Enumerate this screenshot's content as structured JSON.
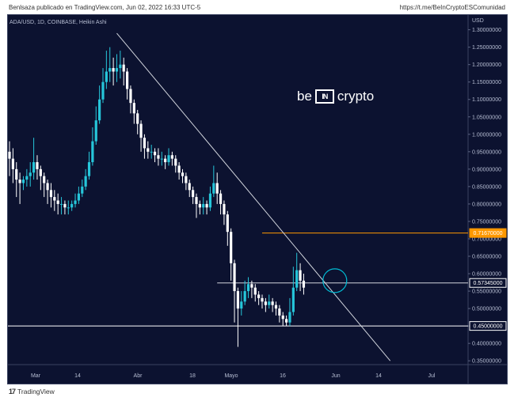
{
  "header": {
    "publisher": "Benlsaza publicado en TradingView.com, Jun 02, 2022 16:33 UTC-5",
    "link": "https://t.me/BeInCryptoESComunidad"
  },
  "symbol_line": "ADA/USD, 1D, COINBASE, Heikin Ashi",
  "brand": {
    "left": "be",
    "mark": "IN",
    "right": "crypto"
  },
  "footer": {
    "logo": "17",
    "name": "TradingView"
  },
  "chart_data": {
    "type": "candlestick",
    "price_axis": {
      "currency_label": "USD",
      "range": [
        0.33,
        1.33
      ],
      "ticks": [
        "1.30000000",
        "1.25000000",
        "1.20000000",
        "1.15000000",
        "1.10000000",
        "1.05000000",
        "1.00000000",
        "0.95000000",
        "0.90000000",
        "0.85000000",
        "0.80000000",
        "0.75000000",
        "0.70000000",
        "0.65000000",
        "0.60000000",
        "0.55000000",
        "0.50000000",
        "0.45000000",
        "0.40000000",
        "0.35000000"
      ]
    },
    "time_axis": {
      "labels": [
        "Mar",
        "14",
        "Abr",
        "18",
        "Mayo",
        "16",
        "Jun",
        "14",
        "Jul"
      ]
    },
    "price_labels": [
      {
        "value": 0.7167,
        "text": "0.71670000",
        "color": "#ff9800",
        "style": "filled"
      },
      {
        "value": 0.57345,
        "text": "0.57345000",
        "color": "#ffffff",
        "style": "outline"
      },
      {
        "value": 0.45,
        "text": "0.45000000",
        "color": "#ffffff",
        "style": "outline"
      }
    ],
    "horizontal_lines": [
      {
        "value": 0.7167,
        "color": "#ff9800",
        "from_day": 73,
        "to": "axis"
      },
      {
        "value": 0.57345,
        "color": "#d1d4dc",
        "from_day": 60,
        "to": "axis"
      },
      {
        "value": 0.45,
        "color": "#ffffff",
        "from_day": -5,
        "to": "axis"
      }
    ],
    "trendline": {
      "from": [
        31,
        1.29
      ],
      "to": [
        110,
        0.35
      ],
      "color": "#d1d4dc"
    },
    "circle": {
      "day": 94,
      "value": 0.58,
      "color": "#00bcd4"
    },
    "colors": {
      "up": "#26c6da",
      "down": "#ffffff"
    },
    "candles": [
      {
        "o": 0.95,
        "c": 0.93,
        "h": 0.98,
        "l": 0.88
      },
      {
        "o": 0.93,
        "c": 0.9,
        "h": 0.96,
        "l": 0.86
      },
      {
        "o": 0.9,
        "c": 0.87,
        "h": 0.92,
        "l": 0.82
      },
      {
        "o": 0.87,
        "c": 0.86,
        "h": 0.89,
        "l": 0.8
      },
      {
        "o": 0.86,
        "c": 0.87,
        "h": 0.88,
        "l": 0.84
      },
      {
        "o": 0.87,
        "c": 0.88,
        "h": 0.9,
        "l": 0.85
      },
      {
        "o": 0.88,
        "c": 0.89,
        "h": 0.92,
        "l": 0.85
      },
      {
        "o": 0.89,
        "c": 0.92,
        "h": 0.99,
        "l": 0.87
      },
      {
        "o": 0.92,
        "c": 0.9,
        "h": 0.94,
        "l": 0.87
      },
      {
        "o": 0.9,
        "c": 0.88,
        "h": 0.91,
        "l": 0.84
      },
      {
        "o": 0.88,
        "c": 0.86,
        "h": 0.89,
        "l": 0.82
      },
      {
        "o": 0.86,
        "c": 0.84,
        "h": 0.87,
        "l": 0.8
      },
      {
        "o": 0.84,
        "c": 0.82,
        "h": 0.86,
        "l": 0.79
      },
      {
        "o": 0.82,
        "c": 0.81,
        "h": 0.84,
        "l": 0.78
      },
      {
        "o": 0.81,
        "c": 0.8,
        "h": 0.83,
        "l": 0.77
      },
      {
        "o": 0.8,
        "c": 0.8,
        "h": 0.82,
        "l": 0.77
      },
      {
        "o": 0.8,
        "c": 0.79,
        "h": 0.81,
        "l": 0.77
      },
      {
        "o": 0.79,
        "c": 0.79,
        "h": 0.81,
        "l": 0.77
      },
      {
        "o": 0.79,
        "c": 0.8,
        "h": 0.81,
        "l": 0.78
      },
      {
        "o": 0.8,
        "c": 0.81,
        "h": 0.83,
        "l": 0.79
      },
      {
        "o": 0.81,
        "c": 0.83,
        "h": 0.85,
        "l": 0.8
      },
      {
        "o": 0.83,
        "c": 0.85,
        "h": 0.87,
        "l": 0.82
      },
      {
        "o": 0.85,
        "c": 0.88,
        "h": 0.9,
        "l": 0.84
      },
      {
        "o": 0.88,
        "c": 0.92,
        "h": 0.95,
        "l": 0.87
      },
      {
        "o": 0.92,
        "c": 0.98,
        "h": 1.02,
        "l": 0.91
      },
      {
        "o": 0.98,
        "c": 1.04,
        "h": 1.08,
        "l": 0.97
      },
      {
        "o": 1.04,
        "c": 1.1,
        "h": 1.14,
        "l": 1.03
      },
      {
        "o": 1.1,
        "c": 1.15,
        "h": 1.19,
        "l": 1.09
      },
      {
        "o": 1.15,
        "c": 1.18,
        "h": 1.24,
        "l": 1.13
      },
      {
        "o": 1.18,
        "c": 1.19,
        "h": 1.25,
        "l": 1.15
      },
      {
        "o": 1.19,
        "c": 1.18,
        "h": 1.22,
        "l": 1.14
      },
      {
        "o": 1.18,
        "c": 1.19,
        "h": 1.23,
        "l": 1.15
      },
      {
        "o": 1.19,
        "c": 1.2,
        "h": 1.24,
        "l": 1.16
      },
      {
        "o": 1.2,
        "c": 1.18,
        "h": 1.22,
        "l": 1.14
      },
      {
        "o": 1.18,
        "c": 1.13,
        "h": 1.19,
        "l": 1.1
      },
      {
        "o": 1.13,
        "c": 1.09,
        "h": 1.14,
        "l": 1.06
      },
      {
        "o": 1.09,
        "c": 1.06,
        "h": 1.1,
        "l": 1.03
      },
      {
        "o": 1.06,
        "c": 1.03,
        "h": 1.07,
        "l": 1.0
      },
      {
        "o": 1.03,
        "c": 0.99,
        "h": 1.04,
        "l": 0.95
      },
      {
        "o": 0.99,
        "c": 0.96,
        "h": 1.0,
        "l": 0.93
      },
      {
        "o": 0.96,
        "c": 0.95,
        "h": 0.98,
        "l": 0.93
      },
      {
        "o": 0.95,
        "c": 0.95,
        "h": 0.97,
        "l": 0.93
      },
      {
        "o": 0.95,
        "c": 0.94,
        "h": 0.96,
        "l": 0.92
      },
      {
        "o": 0.94,
        "c": 0.93,
        "h": 0.96,
        "l": 0.91
      },
      {
        "o": 0.93,
        "c": 0.93,
        "h": 0.95,
        "l": 0.91
      },
      {
        "o": 0.93,
        "c": 0.92,
        "h": 0.94,
        "l": 0.9
      },
      {
        "o": 0.92,
        "c": 0.94,
        "h": 0.96,
        "l": 0.91
      },
      {
        "o": 0.94,
        "c": 0.93,
        "h": 0.95,
        "l": 0.91
      },
      {
        "o": 0.93,
        "c": 0.91,
        "h": 0.94,
        "l": 0.89
      },
      {
        "o": 0.91,
        "c": 0.89,
        "h": 0.92,
        "l": 0.87
      },
      {
        "o": 0.89,
        "c": 0.88,
        "h": 0.9,
        "l": 0.86
      },
      {
        "o": 0.88,
        "c": 0.86,
        "h": 0.89,
        "l": 0.84
      },
      {
        "o": 0.86,
        "c": 0.84,
        "h": 0.87,
        "l": 0.82
      },
      {
        "o": 0.84,
        "c": 0.82,
        "h": 0.85,
        "l": 0.8
      },
      {
        "o": 0.82,
        "c": 0.8,
        "h": 0.83,
        "l": 0.76
      },
      {
        "o": 0.8,
        "c": 0.79,
        "h": 0.81,
        "l": 0.77
      },
      {
        "o": 0.79,
        "c": 0.8,
        "h": 0.82,
        "l": 0.77
      },
      {
        "o": 0.8,
        "c": 0.79,
        "h": 0.81,
        "l": 0.77
      },
      {
        "o": 0.79,
        "c": 0.83,
        "h": 0.85,
        "l": 0.78
      },
      {
        "o": 0.83,
        "c": 0.86,
        "h": 0.91,
        "l": 0.82
      },
      {
        "o": 0.86,
        "c": 0.83,
        "h": 0.89,
        "l": 0.8
      },
      {
        "o": 0.83,
        "c": 0.8,
        "h": 0.84,
        "l": 0.77
      },
      {
        "o": 0.8,
        "c": 0.77,
        "h": 0.81,
        "l": 0.74
      },
      {
        "o": 0.77,
        "c": 0.72,
        "h": 0.78,
        "l": 0.68
      },
      {
        "o": 0.72,
        "c": 0.63,
        "h": 0.73,
        "l": 0.58
      },
      {
        "o": 0.63,
        "c": 0.55,
        "h": 0.64,
        "l": 0.46
      },
      {
        "o": 0.55,
        "c": 0.5,
        "h": 0.56,
        "l": 0.39
      },
      {
        "o": 0.5,
        "c": 0.52,
        "h": 0.55,
        "l": 0.48
      },
      {
        "o": 0.52,
        "c": 0.55,
        "h": 0.58,
        "l": 0.51
      },
      {
        "o": 0.55,
        "c": 0.57,
        "h": 0.59,
        "l": 0.53
      },
      {
        "o": 0.57,
        "c": 0.56,
        "h": 0.58,
        "l": 0.53
      },
      {
        "o": 0.56,
        "c": 0.54,
        "h": 0.57,
        "l": 0.52
      },
      {
        "o": 0.54,
        "c": 0.53,
        "h": 0.55,
        "l": 0.51
      },
      {
        "o": 0.53,
        "c": 0.52,
        "h": 0.54,
        "l": 0.5
      },
      {
        "o": 0.52,
        "c": 0.51,
        "h": 0.53,
        "l": 0.49
      },
      {
        "o": 0.51,
        "c": 0.52,
        "h": 0.54,
        "l": 0.5
      },
      {
        "o": 0.52,
        "c": 0.51,
        "h": 0.53,
        "l": 0.49
      },
      {
        "o": 0.51,
        "c": 0.5,
        "h": 0.52,
        "l": 0.48
      },
      {
        "o": 0.5,
        "c": 0.48,
        "h": 0.51,
        "l": 0.46
      },
      {
        "o": 0.48,
        "c": 0.47,
        "h": 0.49,
        "l": 0.45
      },
      {
        "o": 0.47,
        "c": 0.46,
        "h": 0.48,
        "l": 0.45
      },
      {
        "o": 0.46,
        "c": 0.49,
        "h": 0.53,
        "l": 0.45
      },
      {
        "o": 0.49,
        "c": 0.56,
        "h": 0.62,
        "l": 0.48
      },
      {
        "o": 0.56,
        "c": 0.61,
        "h": 0.66,
        "l": 0.55
      },
      {
        "o": 0.61,
        "c": 0.58,
        "h": 0.63,
        "l": 0.55
      },
      {
        "o": 0.58,
        "c": 0.56,
        "h": 0.6,
        "l": 0.54
      }
    ]
  }
}
